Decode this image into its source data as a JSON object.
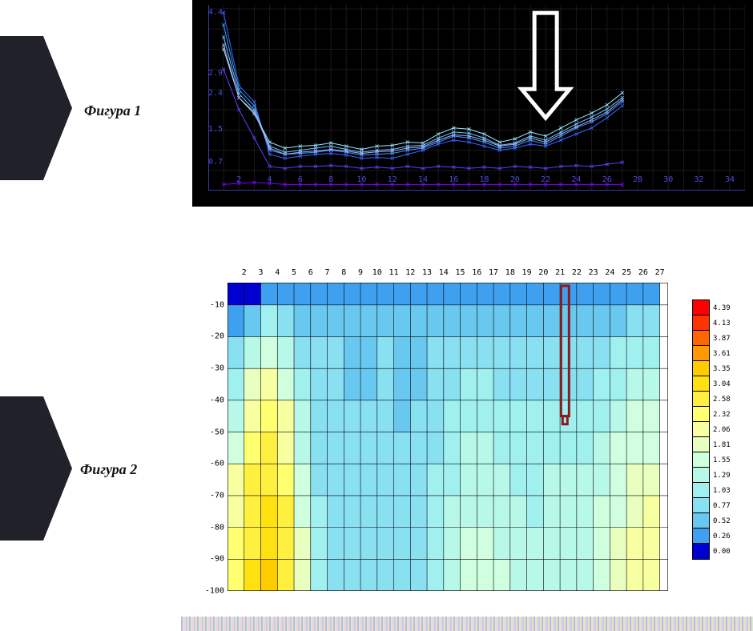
{
  "labels": {
    "fig1": "Фигура 1",
    "fig2": "Фигура 2"
  },
  "fig1": {
    "type": "line",
    "background": "#000000",
    "grid_color": "#1a1a1a",
    "axis_color": "#4a4ae0",
    "tick_font_size": 10,
    "xlim": [
      0,
      35
    ],
    "ylim": [
      0,
      4.6
    ],
    "xticks": [
      2,
      4,
      6,
      8,
      10,
      12,
      14,
      16,
      18,
      20,
      22,
      24,
      26,
      28,
      30,
      32,
      34
    ],
    "yticks": [
      0.7,
      1.5,
      2.4,
      2.9,
      4.4
    ],
    "arrow": {
      "x": 22,
      "y_top": 4.4,
      "y_bot": 1.8,
      "stroke": "#ffffff",
      "stroke_width": 5
    },
    "series": [
      {
        "color": "#8000ff",
        "x": [
          1,
          2,
          3,
          4,
          5,
          6,
          7,
          8,
          9,
          10,
          11,
          12,
          13,
          14,
          15,
          16,
          17,
          18,
          19,
          20,
          21,
          22,
          23,
          24,
          25,
          26,
          27
        ],
        "y": [
          0.15,
          0.18,
          0.2,
          0.18,
          0.15,
          0.15,
          0.15,
          0.15,
          0.15,
          0.15,
          0.15,
          0.15,
          0.15,
          0.15,
          0.15,
          0.15,
          0.15,
          0.15,
          0.15,
          0.15,
          0.15,
          0.15,
          0.15,
          0.15,
          0.15,
          0.15,
          0.15
        ]
      },
      {
        "color": "#6040ff",
        "x": [
          1,
          2,
          3,
          4,
          5,
          6,
          7,
          8,
          9,
          10,
          11,
          12,
          13,
          14,
          15,
          16,
          17,
          18,
          19,
          20,
          21,
          22,
          23,
          24,
          25,
          26,
          27
        ],
        "y": [
          3.0,
          2.0,
          1.3,
          0.6,
          0.55,
          0.6,
          0.6,
          0.62,
          0.6,
          0.55,
          0.58,
          0.55,
          0.6,
          0.55,
          0.6,
          0.58,
          0.55,
          0.58,
          0.55,
          0.6,
          0.58,
          0.55,
          0.6,
          0.62,
          0.6,
          0.65,
          0.7
        ]
      },
      {
        "color": "#4060ff",
        "x": [
          1,
          2,
          3,
          4,
          5,
          6,
          7,
          8,
          9,
          10,
          11,
          12,
          13,
          14,
          15,
          16,
          17,
          18,
          19,
          20,
          21,
          22,
          23,
          24,
          25,
          26,
          27
        ],
        "y": [
          4.4,
          2.6,
          2.2,
          0.9,
          0.8,
          0.85,
          0.9,
          0.92,
          0.88,
          0.8,
          0.82,
          0.8,
          0.9,
          1.0,
          1.15,
          1.25,
          1.2,
          1.1,
          1.0,
          1.05,
          1.15,
          1.1,
          1.25,
          1.4,
          1.55,
          1.8,
          2.1
        ]
      },
      {
        "color": "#30a0ff",
        "x": [
          1,
          2,
          3,
          4,
          5,
          6,
          7,
          8,
          9,
          10,
          11,
          12,
          13,
          14,
          15,
          16,
          17,
          18,
          19,
          20,
          21,
          22,
          23,
          24,
          25,
          26,
          27
        ],
        "y": [
          4.1,
          2.5,
          2.1,
          1.0,
          0.9,
          0.92,
          0.95,
          1.0,
          0.95,
          0.88,
          0.9,
          0.92,
          1.0,
          1.05,
          1.2,
          1.35,
          1.3,
          1.2,
          1.05,
          1.1,
          1.25,
          1.15,
          1.35,
          1.55,
          1.7,
          1.9,
          2.2
        ]
      },
      {
        "color": "#60d0ff",
        "x": [
          1,
          2,
          3,
          4,
          5,
          6,
          7,
          8,
          9,
          10,
          11,
          12,
          13,
          14,
          15,
          16,
          17,
          18,
          19,
          20,
          21,
          22,
          23,
          24,
          25,
          26,
          27
        ],
        "y": [
          3.8,
          2.4,
          2.0,
          1.1,
          0.95,
          1.0,
          1.05,
          1.1,
          1.02,
          0.95,
          1.0,
          1.02,
          1.1,
          1.12,
          1.3,
          1.45,
          1.42,
          1.3,
          1.12,
          1.18,
          1.35,
          1.25,
          1.45,
          1.65,
          1.82,
          2.02,
          2.3
        ]
      },
      {
        "color": "#a0e8ff",
        "x": [
          1,
          2,
          3,
          4,
          5,
          6,
          7,
          8,
          9,
          10,
          11,
          12,
          13,
          14,
          15,
          16,
          17,
          18,
          19,
          20,
          21,
          22,
          23,
          24,
          25,
          26,
          27
        ],
        "y": [
          3.5,
          2.3,
          1.9,
          1.2,
          1.05,
          1.1,
          1.12,
          1.18,
          1.1,
          1.02,
          1.1,
          1.12,
          1.2,
          1.18,
          1.4,
          1.55,
          1.52,
          1.4,
          1.2,
          1.28,
          1.45,
          1.35,
          1.55,
          1.75,
          1.92,
          2.12,
          2.42
        ]
      },
      {
        "color": "#c0a0ff",
        "x": [
          1,
          2,
          3,
          4,
          5,
          6,
          7,
          8,
          9,
          10,
          11,
          12,
          13,
          14,
          15,
          16,
          17,
          18,
          19,
          20,
          21,
          22,
          23,
          24,
          25,
          26,
          27
        ],
        "y": [
          3.6,
          2.3,
          1.95,
          1.05,
          0.9,
          0.95,
          0.98,
          1.02,
          0.98,
          0.92,
          0.96,
          0.98,
          1.05,
          1.08,
          1.25,
          1.38,
          1.35,
          1.25,
          1.1,
          1.15,
          1.3,
          1.2,
          1.4,
          1.58,
          1.75,
          1.95,
          2.25
        ]
      }
    ]
  },
  "fig2": {
    "type": "heatmap",
    "xlim": [
      1,
      27.5
    ],
    "ylim": [
      -100,
      -3
    ],
    "xticks": [
      2,
      3,
      4,
      5,
      6,
      7,
      8,
      9,
      10,
      11,
      12,
      13,
      14,
      15,
      16,
      17,
      18,
      19,
      20,
      21,
      22,
      23,
      24,
      25,
      26,
      27
    ],
    "yticks": [
      -10,
      -20,
      -30,
      -40,
      -50,
      -60,
      -70,
      -80,
      -90,
      -100
    ],
    "grid_color": "#000000",
    "marker": {
      "x": 21.3,
      "y_top": -4,
      "y_bot": -45,
      "stroke": "#8b1a1a",
      "stroke_width": 3
    },
    "colorbar": {
      "colors": [
        "#ff0000",
        "#ff3300",
        "#ff6600",
        "#ff9900",
        "#ffcc00",
        "#ffe010",
        "#fff040",
        "#ffff70",
        "#f8ffa0",
        "#e8ffc0",
        "#d0ffe0",
        "#b8f8e8",
        "#a0f0f0",
        "#88e0f0",
        "#68c8f0",
        "#40a0f0",
        "#0000d0"
      ],
      "labels": [
        "4.39",
        "4.13",
        "3.87",
        "3.61",
        "3.35",
        "3.04",
        "2.58",
        "2.32",
        "2.06",
        "1.81",
        "1.55",
        "1.29",
        "1.03",
        "0.77",
        "0.52",
        "0.26",
        "0.00"
      ]
    },
    "cells_x": [
      1,
      2,
      3,
      4,
      5,
      6,
      7,
      8,
      9,
      10,
      11,
      12,
      13,
      14,
      15,
      16,
      17,
      18,
      19,
      20,
      21,
      22,
      23,
      24,
      25,
      26,
      27
    ],
    "cells_y": [
      -3,
      -10,
      -20,
      -30,
      -40,
      -50,
      -60,
      -70,
      -80,
      -90,
      -100
    ],
    "values": [
      [
        0.0,
        0.0,
        0.0,
        0.0,
        0.0,
        0.0,
        0.0,
        0.0,
        0.0,
        0.0,
        0.0,
        0.0,
        0.0,
        0.0,
        0.0,
        0.0,
        0.0,
        0.0,
        0.0,
        0.0,
        0.0,
        0.0,
        0.0,
        0.0,
        0.0,
        0.0,
        0.0
      ],
      [
        0.26,
        0.26,
        0.52,
        0.77,
        0.52,
        0.52,
        0.52,
        0.52,
        0.52,
        0.52,
        0.52,
        0.52,
        0.52,
        0.52,
        0.52,
        0.52,
        0.52,
        0.52,
        0.52,
        0.52,
        0.52,
        0.52,
        0.52,
        0.52,
        0.52,
        0.52,
        0.52
      ],
      [
        0.52,
        0.77,
        1.29,
        1.55,
        1.03,
        0.77,
        0.77,
        0.77,
        0.77,
        0.77,
        0.77,
        0.77,
        0.77,
        0.77,
        0.9,
        0.9,
        0.77,
        0.9,
        0.77,
        0.77,
        0.9,
        0.77,
        0.9,
        0.9,
        1.03,
        1.03,
        1.03
      ],
      [
        0.77,
        1.29,
        2.06,
        2.06,
        1.29,
        0.77,
        0.77,
        0.77,
        0.65,
        0.77,
        0.77,
        0.6,
        0.77,
        0.9,
        1.03,
        1.03,
        0.9,
        1.03,
        0.9,
        0.9,
        1.03,
        0.9,
        1.03,
        1.15,
        1.29,
        1.29,
        1.29
      ],
      [
        1.03,
        1.81,
        2.32,
        2.32,
        1.55,
        0.9,
        0.77,
        0.77,
        0.77,
        0.77,
        0.77,
        0.65,
        0.9,
        1.03,
        1.15,
        1.29,
        1.03,
        1.15,
        1.03,
        1.03,
        1.15,
        1.03,
        1.15,
        1.29,
        1.4,
        1.55,
        1.55
      ],
      [
        1.29,
        2.06,
        2.58,
        2.58,
        1.81,
        1.03,
        0.77,
        0.77,
        0.77,
        0.77,
        0.77,
        0.77,
        0.9,
        1.03,
        1.29,
        1.4,
        1.15,
        1.29,
        1.03,
        1.15,
        1.29,
        1.15,
        1.29,
        1.4,
        1.55,
        1.7,
        1.7
      ],
      [
        1.55,
        2.32,
        2.8,
        2.8,
        2.06,
        1.15,
        0.77,
        0.77,
        0.77,
        0.77,
        0.77,
        0.77,
        0.9,
        1.15,
        1.29,
        1.55,
        1.29,
        1.4,
        1.15,
        1.15,
        1.4,
        1.15,
        1.4,
        1.55,
        1.7,
        1.81,
        1.81
      ],
      [
        1.81,
        2.58,
        3.04,
        3.04,
        2.2,
        1.29,
        0.77,
        0.77,
        0.77,
        0.9,
        0.77,
        0.77,
        1.03,
        1.15,
        1.4,
        1.55,
        1.4,
        1.4,
        1.15,
        1.29,
        1.4,
        1.29,
        1.4,
        1.55,
        1.81,
        1.95,
        2.06
      ],
      [
        2.06,
        2.7,
        3.2,
        3.2,
        2.32,
        1.4,
        0.77,
        0.9,
        0.77,
        0.9,
        0.77,
        0.9,
        1.03,
        1.29,
        1.4,
        1.7,
        1.4,
        1.55,
        1.29,
        1.29,
        1.55,
        1.29,
        1.55,
        1.7,
        1.95,
        2.06,
        2.2
      ],
      [
        2.2,
        2.8,
        3.35,
        3.35,
        2.4,
        1.55,
        0.9,
        0.9,
        0.9,
        0.9,
        0.9,
        0.9,
        1.15,
        1.29,
        1.55,
        1.7,
        1.55,
        1.55,
        1.29,
        1.4,
        1.55,
        1.4,
        1.55,
        1.81,
        2.06,
        2.2,
        2.32
      ],
      [
        2.32,
        2.9,
        3.4,
        3.4,
        2.58,
        1.55,
        0.9,
        0.9,
        0.9,
        1.03,
        0.9,
        0.9,
        1.15,
        1.4,
        1.55,
        1.81,
        1.55,
        1.7,
        1.4,
        1.4,
        1.7,
        1.4,
        1.7,
        1.95,
        2.2,
        2.32,
        2.4
      ]
    ]
  }
}
